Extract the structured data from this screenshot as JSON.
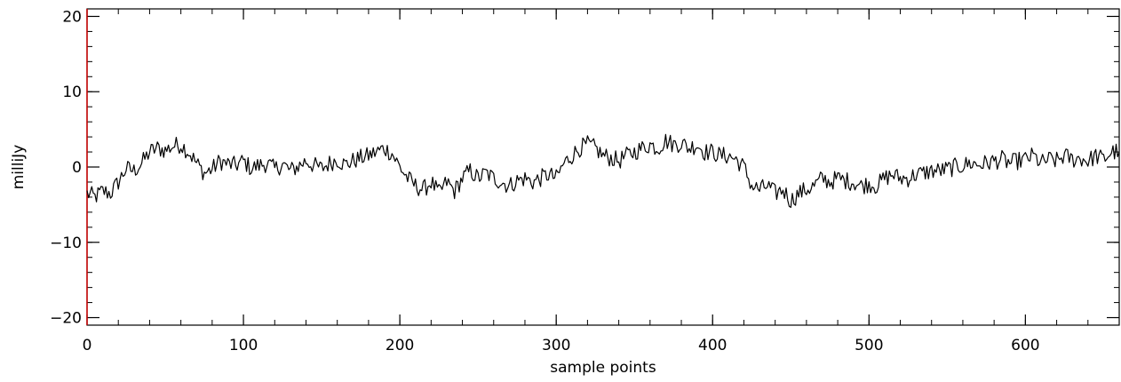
{
  "chart_data": {
    "type": "line",
    "title": "",
    "xlabel": "sample points",
    "ylabel": "milliJy",
    "xlim": [
      0,
      660
    ],
    "ylim": [
      -21,
      21
    ],
    "x_ticks": [
      0,
      100,
      200,
      300,
      400,
      500,
      600
    ],
    "x_tick_labels": [
      "0",
      "100",
      "200",
      "300",
      "400",
      "500",
      "600"
    ],
    "y_ticks": [
      -20,
      -10,
      0,
      10,
      20
    ],
    "y_tick_labels": [
      "−20",
      "−10",
      "0",
      "10",
      "20"
    ],
    "grid": false,
    "legend": "none",
    "colors": {
      "line": "#000000",
      "left_axis": "#cc0000"
    },
    "series": [
      {
        "x": [
          0,
          5,
          10,
          15,
          20,
          25,
          30,
          35,
          40,
          45,
          50,
          55,
          60,
          65,
          70,
          75,
          80,
          85,
          90,
          95,
          100,
          105,
          110,
          115,
          120,
          125,
          130,
          135,
          140,
          145,
          150,
          155,
          160,
          165,
          170,
          175,
          180,
          185,
          190,
          195,
          200,
          205,
          210,
          215,
          220,
          225,
          230,
          235,
          240,
          245,
          250,
          255,
          260,
          265,
          270,
          275,
          280,
          285,
          290,
          295,
          300,
          305,
          310,
          315,
          320,
          325,
          330,
          335,
          340,
          345,
          350,
          355,
          360,
          365,
          370,
          375,
          380,
          385,
          390,
          395,
          400,
          405,
          410,
          415,
          420,
          425,
          430,
          435,
          440,
          445,
          450,
          455,
          460,
          465,
          470,
          475,
          480,
          485,
          490,
          495,
          500,
          505,
          510,
          515,
          520,
          525,
          530,
          535,
          540,
          545,
          550,
          555,
          560,
          565,
          570,
          575,
          580,
          585,
          590,
          595,
          600,
          605,
          610,
          615,
          620,
          625,
          630,
          635,
          640,
          645,
          650,
          655,
          660
        ],
        "y": [
          -3.5,
          -4.0,
          -3.2,
          -3.5,
          -2.0,
          -0.2,
          -0.5,
          0.5,
          2.0,
          2.5,
          2.2,
          2.8,
          3.0,
          2.0,
          0.5,
          -0.8,
          -0.3,
          0.8,
          0.4,
          0.2,
          0.8,
          -0.2,
          0.2,
          0.5,
          -0.3,
          0.4,
          -0.5,
          0.1,
          0.8,
          0.2,
          -0.2,
          0.5,
          1.0,
          0.3,
          0.8,
          1.2,
          1.5,
          2.0,
          2.5,
          1.8,
          0.0,
          -1.5,
          -2.5,
          -3.0,
          -2.0,
          -3.5,
          -2.0,
          -3.2,
          -1.5,
          -0.5,
          -1.5,
          -0.8,
          -1.5,
          -2.0,
          -2.5,
          -1.8,
          -1.5,
          -2.0,
          -1.5,
          -1.0,
          -1.5,
          0.5,
          1.5,
          2.5,
          3.0,
          2.5,
          1.5,
          1.2,
          0.8,
          1.5,
          2.0,
          2.5,
          3.0,
          2.5,
          3.5,
          3.0,
          3.2,
          2.5,
          3.0,
          2.0,
          2.0,
          1.5,
          1.5,
          1.0,
          0.0,
          -2.5,
          -3.0,
          -2.5,
          -3.5,
          -3.0,
          -4.5,
          -3.5,
          -3.0,
          -2.5,
          -1.5,
          -2.0,
          -1.5,
          -1.8,
          -2.0,
          -2.5,
          -2.2,
          -2.5,
          -1.5,
          -1.0,
          -1.5,
          -1.5,
          -1.0,
          -0.8,
          -0.5,
          -0.5,
          -0.3,
          0.0,
          0.2,
          0.5,
          0.3,
          0.5,
          0.8,
          1.0,
          0.5,
          0.8,
          1.0,
          1.5,
          0.5,
          1.0,
          0.8,
          1.5,
          1.0,
          1.2,
          0.8,
          1.5,
          1.0,
          2.0,
          2.0
        ]
      }
    ]
  }
}
